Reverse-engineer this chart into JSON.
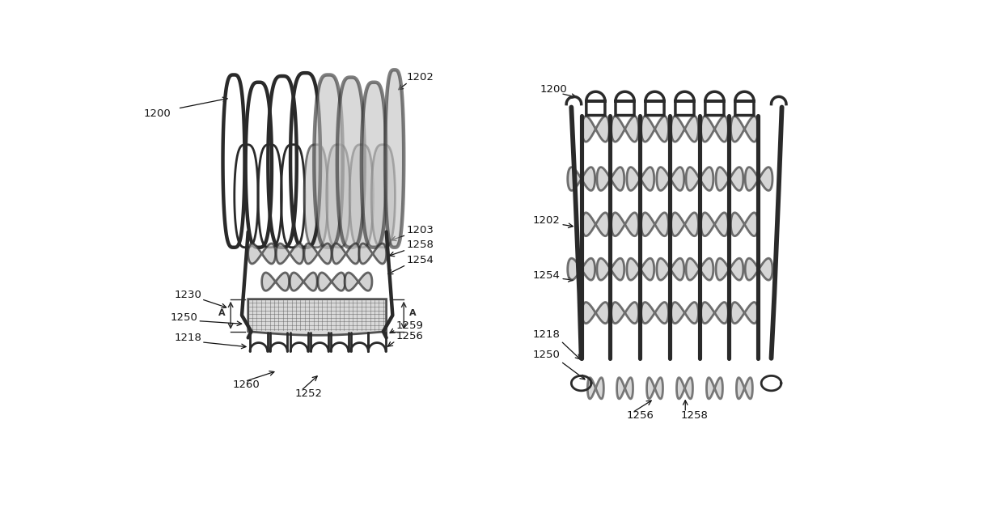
{
  "background_color": "#ffffff",
  "line_color": "#2a2a2a",
  "shading_color": "#c0c0c0",
  "fig_width": 12.4,
  "fig_height": 6.55,
  "lw_thick": 3.2,
  "lw_med": 2.0,
  "lw_thin": 1.2
}
